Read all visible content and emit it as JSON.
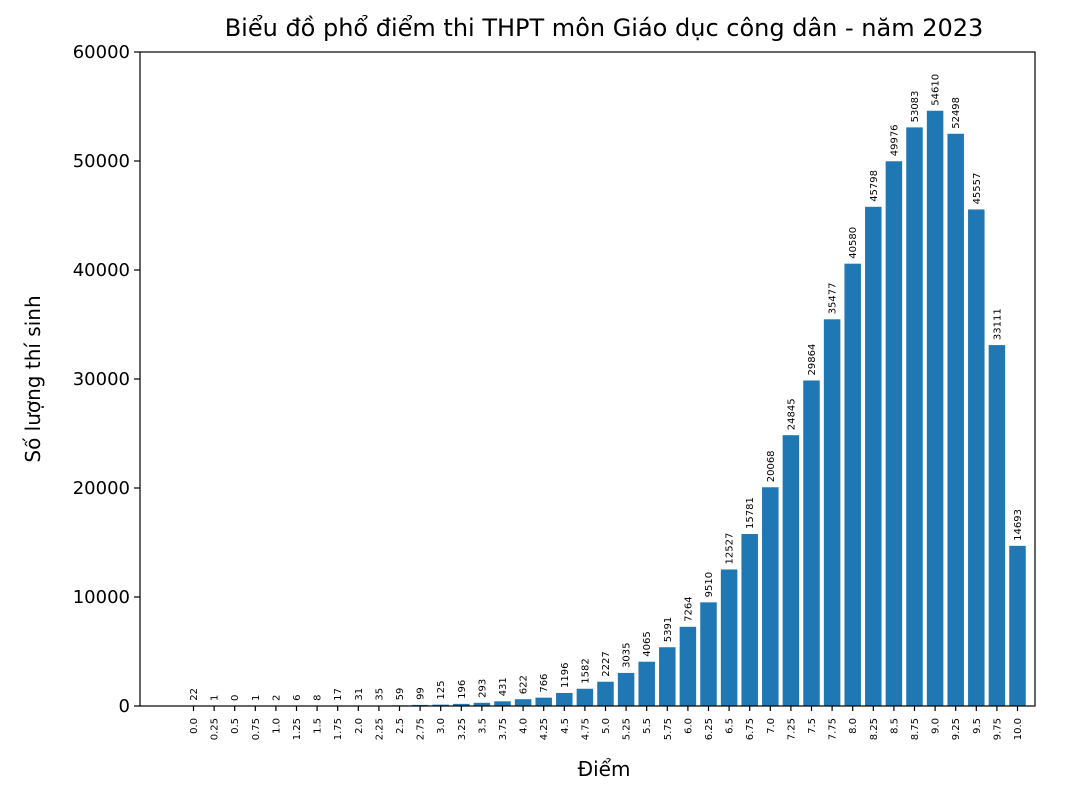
{
  "chart_data": {
    "type": "bar",
    "title": "Biểu đồ phổ điểm thi THPT môn Giáo dục công dân - năm 2023",
    "xlabel": "Điểm",
    "ylabel": "Số lượng thí sinh",
    "ylim": [
      0,
      60000
    ],
    "yticks": [
      "0",
      "10000",
      "20000",
      "30000",
      "40000",
      "50000",
      "60000"
    ],
    "grid": false,
    "color": "#1f77b4",
    "categories": [
      "0.0",
      "0.25",
      "0.5",
      "0.75",
      "1.0",
      "1.25",
      "1.5",
      "1.75",
      "2.0",
      "2.25",
      "2.5",
      "2.75",
      "3.0",
      "3.25",
      "3.5",
      "3.75",
      "4.0",
      "4.25",
      "4.5",
      "4.75",
      "5.0",
      "5.25",
      "5.5",
      "5.75",
      "6.0",
      "6.25",
      "6.5",
      "6.75",
      "7.0",
      "7.25",
      "7.5",
      "7.75",
      "8.0",
      "8.25",
      "8.5",
      "8.75",
      "9.0",
      "9.25",
      "9.5",
      "9.75",
      "10.0"
    ],
    "values": [
      22,
      1,
      0,
      1,
      2,
      6,
      8,
      17,
      31,
      35,
      59,
      99,
      125,
      196,
      293,
      431,
      622,
      766,
      1196,
      1582,
      2227,
      3035,
      4065,
      5391,
      7264,
      9510,
      12527,
      15781,
      20068,
      24845,
      29864,
      35477,
      40580,
      45798,
      49976,
      53083,
      54610,
      52498,
      45557,
      33111,
      14693
    ]
  }
}
